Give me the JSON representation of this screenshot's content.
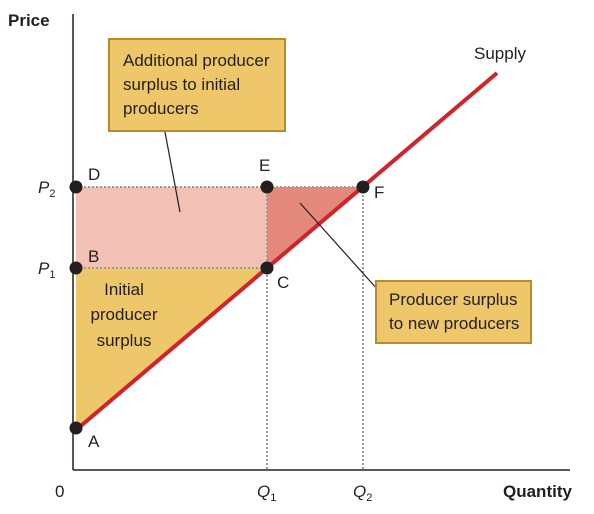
{
  "axes": {
    "y_title": "Price",
    "x_title": "Quantity",
    "origin": "0"
  },
  "ticks": {
    "p1": {
      "main": "P",
      "sub": "1"
    },
    "p2": {
      "main": "P",
      "sub": "2"
    },
    "q1": {
      "main": "Q",
      "sub": "1"
    },
    "q2": {
      "main": "Q",
      "sub": "2"
    }
  },
  "points": {
    "a": "A",
    "b": "B",
    "c": "C",
    "d": "D",
    "e": "E",
    "f": "F"
  },
  "curve_label": "Supply",
  "regions": {
    "initial_surplus": [
      "Initial",
      "producer",
      "surplus"
    ]
  },
  "callouts": {
    "additional": [
      "Additional producer",
      "surplus to initial",
      "producers"
    ],
    "new": [
      "Producer surplus",
      "to new producers"
    ]
  },
  "colors": {
    "supply_line": "#d2232a",
    "initial_surplus_fill": "#edc76a",
    "additional_surplus_fill": "#f2c0b5",
    "new_surplus_fill": "#e4887c",
    "callout_fill": "#edc76a",
    "callout_border": "#b98a2a",
    "dotted": "#9a9a9a",
    "dot": "#231f20"
  }
}
